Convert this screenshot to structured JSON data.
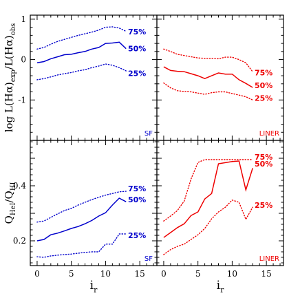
{
  "chart_data": [
    {
      "type": "line",
      "panel": "top-left",
      "tag": "SF",
      "color": "#0000cc",
      "ylabel_parts": [
        "log L(Hα)",
        "exp",
        "/L(Hα)",
        "obs"
      ],
      "xlim": [
        -1,
        17.5
      ],
      "ylim": [
        -2,
        1.1
      ],
      "yticks": [
        "-1",
        "0",
        "1"
      ],
      "series": [
        {
          "name": "75%",
          "style": "dotted",
          "x": [
            0,
            1,
            2,
            3,
            4,
            5,
            6,
            7,
            8,
            9,
            10,
            11,
            12,
            13
          ],
          "y": [
            0.26,
            0.3,
            0.38,
            0.45,
            0.5,
            0.55,
            0.6,
            0.64,
            0.68,
            0.73,
            0.8,
            0.81,
            0.78,
            0.7
          ]
        },
        {
          "name": "50%",
          "style": "solid",
          "x": [
            0,
            1,
            2,
            3,
            4,
            5,
            6,
            7,
            8,
            9,
            10,
            11,
            12,
            13
          ],
          "y": [
            -0.08,
            -0.05,
            0.02,
            0.07,
            0.12,
            0.13,
            0.17,
            0.2,
            0.26,
            0.3,
            0.4,
            0.41,
            0.43,
            0.27
          ]
        },
        {
          "name": "25%",
          "style": "dotted",
          "x": [
            0,
            1,
            2,
            3,
            4,
            5,
            6,
            7,
            8,
            9,
            10,
            11,
            12,
            13
          ],
          "y": [
            -0.5,
            -0.47,
            -0.43,
            -0.38,
            -0.35,
            -0.32,
            -0.28,
            -0.25,
            -0.2,
            -0.16,
            -0.11,
            -0.14,
            -0.2,
            -0.28
          ]
        }
      ]
    },
    {
      "type": "line",
      "panel": "top-right",
      "tag": "LINER",
      "color": "#ee0000",
      "xlim": [
        -1,
        17.5
      ],
      "ylim": [
        -2,
        1.1
      ],
      "series": [
        {
          "name": "75%",
          "style": "dotted",
          "x": [
            0,
            1,
            2,
            3,
            4,
            5,
            6,
            7,
            8,
            9,
            10,
            11,
            12,
            13
          ],
          "y": [
            0.26,
            0.2,
            0.13,
            0.1,
            0.07,
            0.04,
            0.03,
            0.03,
            0.02,
            0.06,
            0.06,
            0.0,
            -0.08,
            -0.3
          ]
        },
        {
          "name": "50%",
          "style": "solid",
          "x": [
            0,
            1,
            2,
            3,
            4,
            5,
            6,
            7,
            8,
            9,
            10,
            11,
            12,
            13
          ],
          "y": [
            -0.18,
            -0.27,
            -0.29,
            -0.3,
            -0.35,
            -0.4,
            -0.47,
            -0.4,
            -0.33,
            -0.36,
            -0.36,
            -0.5,
            -0.59,
            -0.69
          ]
        },
        {
          "name": "25%",
          "style": "dotted",
          "x": [
            0,
            1,
            2,
            3,
            4,
            5,
            6,
            7,
            8,
            9,
            10,
            11,
            12,
            13
          ],
          "y": [
            -0.58,
            -0.7,
            -0.77,
            -0.79,
            -0.8,
            -0.83,
            -0.86,
            -0.82,
            -0.8,
            -0.8,
            -0.84,
            -0.88,
            -0.92,
            -1.0
          ]
        }
      ]
    },
    {
      "type": "line",
      "panel": "bottom-left",
      "tag": "SF",
      "color": "#0000cc",
      "ylabel_parts": [
        "Q",
        "HeI",
        "/Q",
        "HI"
      ],
      "xlim": [
        -1,
        17.5
      ],
      "ylim": [
        0.11,
        0.565
      ],
      "xticks": [
        "0",
        "5",
        "10",
        "15"
      ],
      "yticks": [
        "0.2",
        "0.4"
      ],
      "series": [
        {
          "name": "75%",
          "style": "dotted",
          "x": [
            0,
            1,
            2,
            3,
            4,
            5,
            6,
            7,
            8,
            9,
            10,
            11,
            12,
            13
          ],
          "y": [
            0.268,
            0.272,
            0.285,
            0.298,
            0.31,
            0.318,
            0.33,
            0.34,
            0.35,
            0.358,
            0.366,
            0.372,
            0.378,
            0.38
          ]
        },
        {
          "name": "50%",
          "style": "solid",
          "x": [
            0,
            1,
            2,
            3,
            4,
            5,
            6,
            7,
            8,
            9,
            10,
            11,
            12,
            13
          ],
          "y": [
            0.2,
            0.205,
            0.222,
            0.228,
            0.236,
            0.245,
            0.252,
            0.262,
            0.274,
            0.29,
            0.302,
            0.33,
            0.355,
            0.342
          ]
        },
        {
          "name": "25%",
          "style": "dotted",
          "x": [
            0,
            1,
            2,
            3,
            4,
            5,
            6,
            7,
            8,
            9,
            10,
            11,
            12,
            13
          ],
          "y": [
            0.142,
            0.14,
            0.145,
            0.148,
            0.15,
            0.152,
            0.155,
            0.158,
            0.16,
            0.16,
            0.188,
            0.188,
            0.225,
            0.225
          ]
        }
      ]
    },
    {
      "type": "line",
      "panel": "bottom-right",
      "tag": "LINER",
      "color": "#ee0000",
      "xlim": [
        -1,
        17.5
      ],
      "ylim": [
        0.11,
        0.565
      ],
      "xticks": [
        "0",
        "5",
        "10",
        "15"
      ],
      "series": [
        {
          "name": "75%",
          "style": "dotted",
          "x": [
            0,
            1,
            2,
            3,
            4,
            5,
            6,
            7,
            8,
            9,
            10,
            11,
            12,
            13
          ],
          "y": [
            0.272,
            0.29,
            0.31,
            0.345,
            0.425,
            0.485,
            0.495,
            0.495,
            0.495,
            0.495,
            0.495,
            0.495,
            0.495,
            0.495
          ]
        },
        {
          "name": "50%",
          "style": "solid",
          "x": [
            0,
            1,
            2,
            3,
            4,
            5,
            6,
            7,
            8,
            9,
            10,
            11,
            12,
            13
          ],
          "y": [
            0.212,
            0.23,
            0.248,
            0.262,
            0.292,
            0.305,
            0.352,
            0.372,
            0.48,
            0.484,
            0.488,
            0.49,
            0.385,
            0.464
          ]
        },
        {
          "name": "25%",
          "style": "dotted",
          "x": [
            0,
            1,
            2,
            3,
            4,
            5,
            6,
            7,
            8,
            9,
            10,
            11,
            12,
            13
          ],
          "y": [
            0.15,
            0.168,
            0.18,
            0.188,
            0.205,
            0.222,
            0.245,
            0.28,
            0.305,
            0.322,
            0.348,
            0.34,
            0.278,
            0.322
          ]
        }
      ]
    }
  ],
  "xlabel_parts": [
    "i",
    "r"
  ]
}
